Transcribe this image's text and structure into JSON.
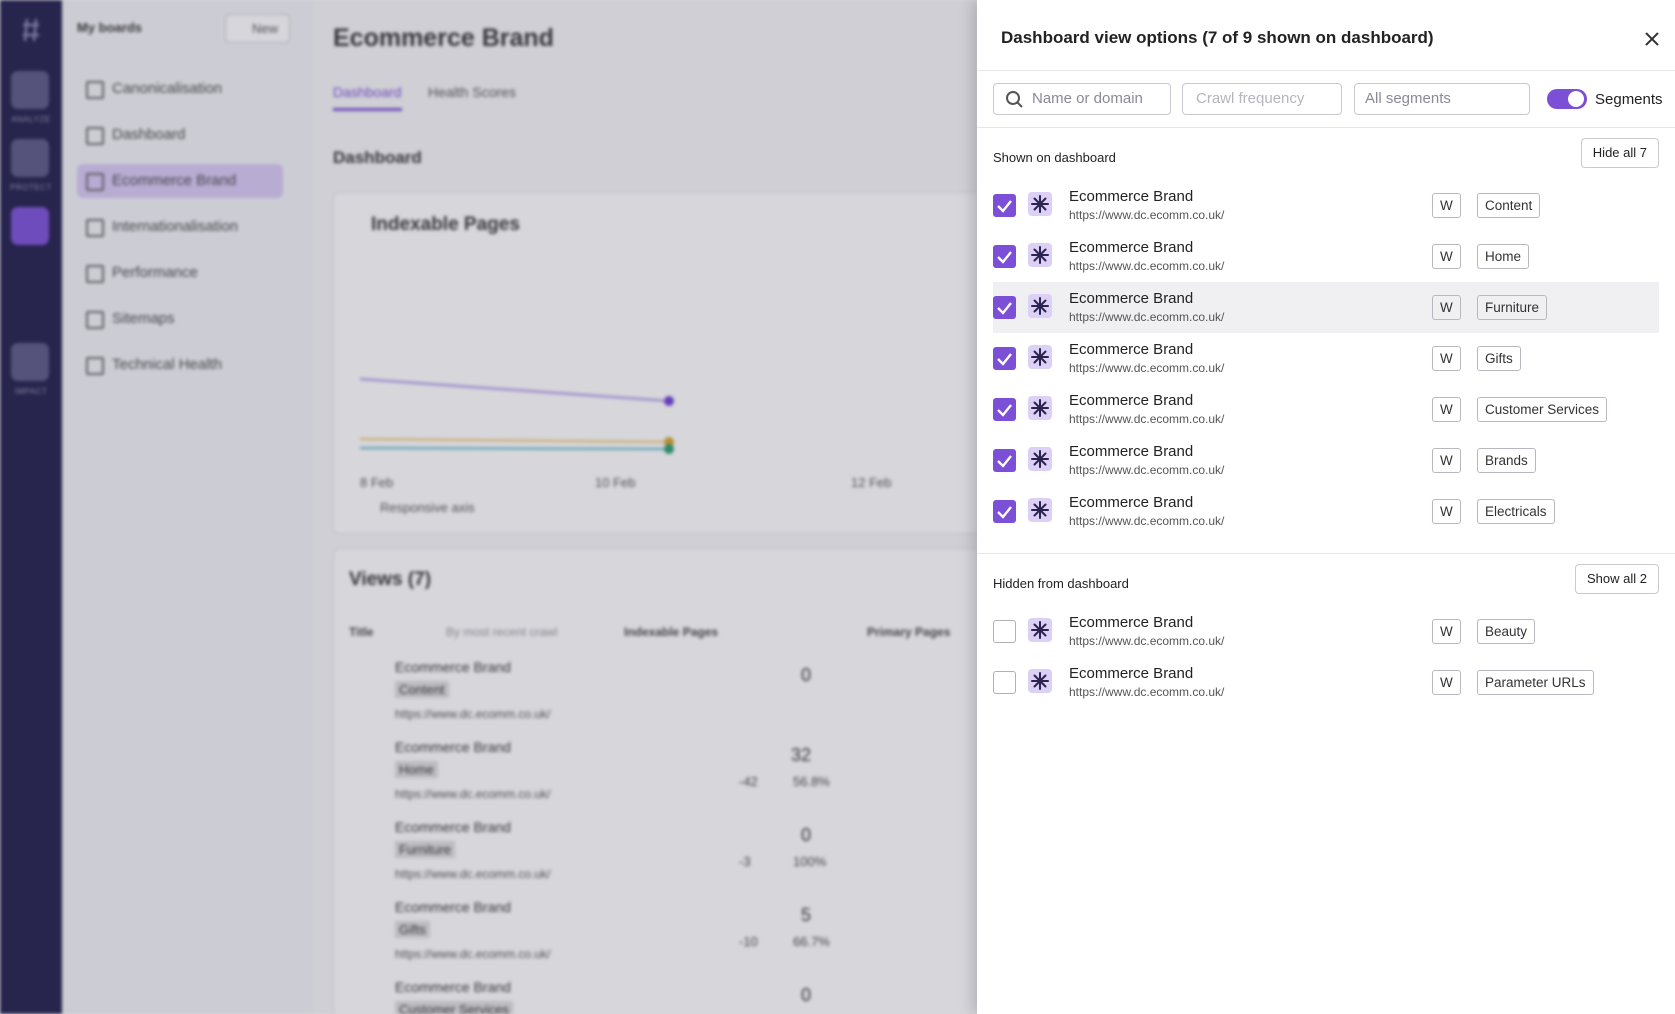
{
  "nav": {
    "labels": [
      "ANALYZE",
      "PROTECT",
      "IMPACT"
    ]
  },
  "boards": {
    "title": "My boards",
    "new_button": "New",
    "items": [
      {
        "label": "Canonicalisation",
        "active": false
      },
      {
        "label": "Dashboard",
        "active": false
      },
      {
        "label": "Ecommerce Brand",
        "active": true
      },
      {
        "label": "Internationalisation",
        "active": false
      },
      {
        "label": "Performance",
        "active": false
      },
      {
        "label": "Sitemaps",
        "active": false
      },
      {
        "label": "Technical Health",
        "active": false
      }
    ]
  },
  "main": {
    "title": "Ecommerce Brand",
    "tabs": [
      "Dashboard",
      "Health Scores"
    ],
    "section": "Dashboard",
    "chart": {
      "title": "Indexable Pages",
      "x_labels": [
        "8 Feb",
        "10 Feb",
        "12 Feb"
      ],
      "responsive_axis": "Responsive axis"
    },
    "views": {
      "title": "Views (7)",
      "columns": [
        "Title",
        "By most recent crawl",
        "Indexable Pages",
        "Primary Pages"
      ],
      "rows": [
        {
          "name": "Ecommerce Brand",
          "segment": "Content",
          "url": "https://www.dc.ecomm.co.uk/",
          "value": "0",
          "change": "",
          "pct": ""
        },
        {
          "name": "Ecommerce Brand",
          "segment": "Home",
          "url": "https://www.dc.ecomm.co.uk/",
          "value": "32",
          "change": "-42",
          "pct": "56.8%"
        },
        {
          "name": "Ecommerce Brand",
          "segment": "Furniture",
          "url": "https://www.dc.ecomm.co.uk/",
          "value": "0",
          "change": "-3",
          "pct": "100%"
        },
        {
          "name": "Ecommerce Brand",
          "segment": "Gifts",
          "url": "https://www.dc.ecomm.co.uk/",
          "value": "5",
          "change": "-10",
          "pct": "66.7%"
        },
        {
          "name": "Ecommerce Brand",
          "segment": "Customer Services",
          "url": "",
          "value": "0",
          "change": "",
          "pct": ""
        }
      ]
    }
  },
  "panel": {
    "title": "Dashboard view options (7 of 9 shown on dashboard)",
    "search_placeholder": "Name or domain",
    "crawl_frequency": "Crawl frequency",
    "segments_select": "All segments",
    "segments_toggle": "Segments",
    "shown": {
      "heading": "Shown on dashboard",
      "button": "Hide all 7",
      "items": [
        {
          "name": "Ecommerce Brand",
          "url": "https://www.dc.ecomm.co.uk/",
          "badge": "W",
          "segment": "Content",
          "checked": true
        },
        {
          "name": "Ecommerce Brand",
          "url": "https://www.dc.ecomm.co.uk/",
          "badge": "W",
          "segment": "Home",
          "checked": true
        },
        {
          "name": "Ecommerce Brand",
          "url": "https://www.dc.ecomm.co.uk/",
          "badge": "W",
          "segment": "Furniture",
          "checked": true
        },
        {
          "name": "Ecommerce Brand",
          "url": "https://www.dc.ecomm.co.uk/",
          "badge": "W",
          "segment": "Gifts",
          "checked": true
        },
        {
          "name": "Ecommerce Brand",
          "url": "https://www.dc.ecomm.co.uk/",
          "badge": "W",
          "segment": "Customer Services",
          "checked": true
        },
        {
          "name": "Ecommerce Brand",
          "url": "https://www.dc.ecomm.co.uk/",
          "badge": "W",
          "segment": "Brands",
          "checked": true
        },
        {
          "name": "Ecommerce Brand",
          "url": "https://www.dc.ecomm.co.uk/",
          "badge": "W",
          "segment": "Electricals",
          "checked": true
        }
      ]
    },
    "hidden": {
      "heading": "Hidden from dashboard",
      "button": "Show all 2",
      "items": [
        {
          "name": "Ecommerce Brand",
          "url": "https://www.dc.ecomm.co.uk/",
          "badge": "W",
          "segment": "Beauty",
          "checked": false
        },
        {
          "name": "Ecommerce Brand",
          "url": "https://www.dc.ecomm.co.uk/",
          "badge": "W",
          "segment": "Parameter URLs",
          "checked": false
        }
      ]
    }
  }
}
